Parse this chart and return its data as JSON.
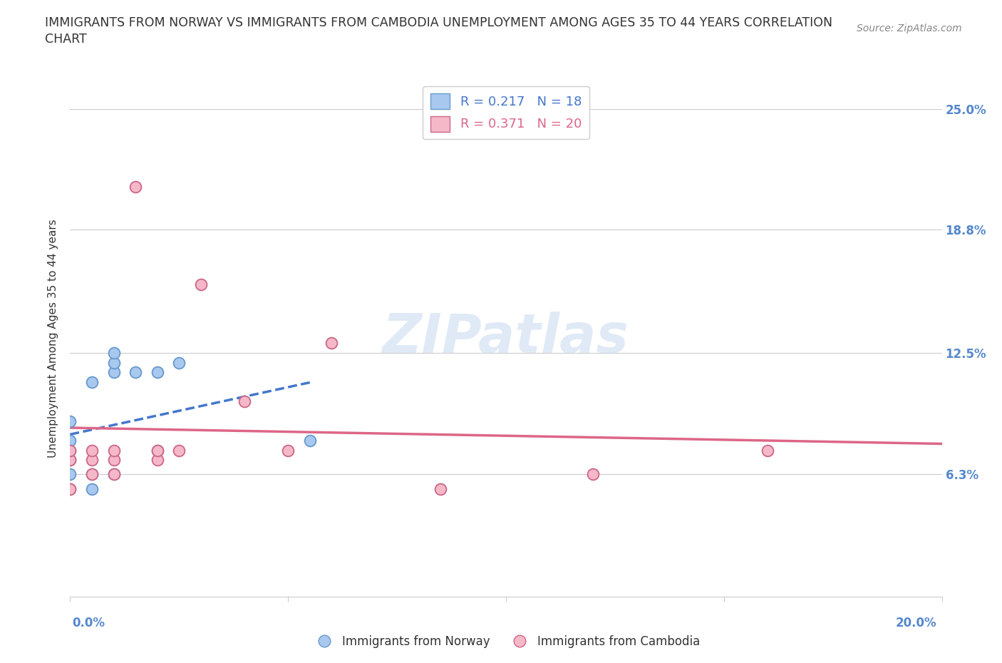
{
  "title_line1": "IMMIGRANTS FROM NORWAY VS IMMIGRANTS FROM CAMBODIA UNEMPLOYMENT AMONG AGES 35 TO 44 YEARS CORRELATION",
  "title_line2": "CHART",
  "source": "Source: ZipAtlas.com",
  "ylabel": "Unemployment Among Ages 35 to 44 years",
  "xlim": [
    0.0,
    0.2
  ],
  "ylim": [
    0.0,
    0.265
  ],
  "norway_color": "#a8c8f0",
  "norway_edge_color": "#6699cc",
  "cambodia_color": "#f5b8c8",
  "cambodia_edge_color": "#cc6688",
  "norway_R": "0.217",
  "norway_N": "18",
  "cambodia_R": "0.371",
  "cambodia_N": "20",
  "norway_scatter_x": [
    0.0,
    0.0,
    0.0,
    0.0,
    0.0,
    0.0,
    0.005,
    0.005,
    0.005,
    0.01,
    0.01,
    0.01,
    0.01,
    0.015,
    0.02,
    0.02,
    0.025,
    0.055
  ],
  "norway_scatter_y": [
    0.055,
    0.063,
    0.07,
    0.075,
    0.08,
    0.09,
    0.055,
    0.063,
    0.11,
    0.063,
    0.115,
    0.12,
    0.125,
    0.115,
    0.115,
    0.075,
    0.12,
    0.08
  ],
  "cambodia_scatter_x": [
    0.0,
    0.0,
    0.0,
    0.005,
    0.005,
    0.005,
    0.01,
    0.01,
    0.01,
    0.015,
    0.02,
    0.02,
    0.025,
    0.03,
    0.04,
    0.05,
    0.06,
    0.085,
    0.12,
    0.16
  ],
  "cambodia_scatter_y": [
    0.055,
    0.07,
    0.075,
    0.063,
    0.07,
    0.075,
    0.063,
    0.07,
    0.075,
    0.21,
    0.07,
    0.075,
    0.075,
    0.16,
    0.1,
    0.075,
    0.13,
    0.055,
    0.063,
    0.075
  ],
  "norway_line_color": "#4477cc",
  "cambodia_line_color": "#dd6688",
  "ytick_values": [
    0.063,
    0.125,
    0.188,
    0.25
  ],
  "ytick_labels": [
    "6.3%",
    "12.5%",
    "18.8%",
    "25.0%"
  ],
  "xtick_values": [
    0.0,
    0.05,
    0.1,
    0.15,
    0.2
  ],
  "watermark": "ZIPatlas",
  "grid_color": "#cccccc",
  "background_color": "#ffffff",
  "title_color": "#333333",
  "axis_label_color": "#5588cc"
}
